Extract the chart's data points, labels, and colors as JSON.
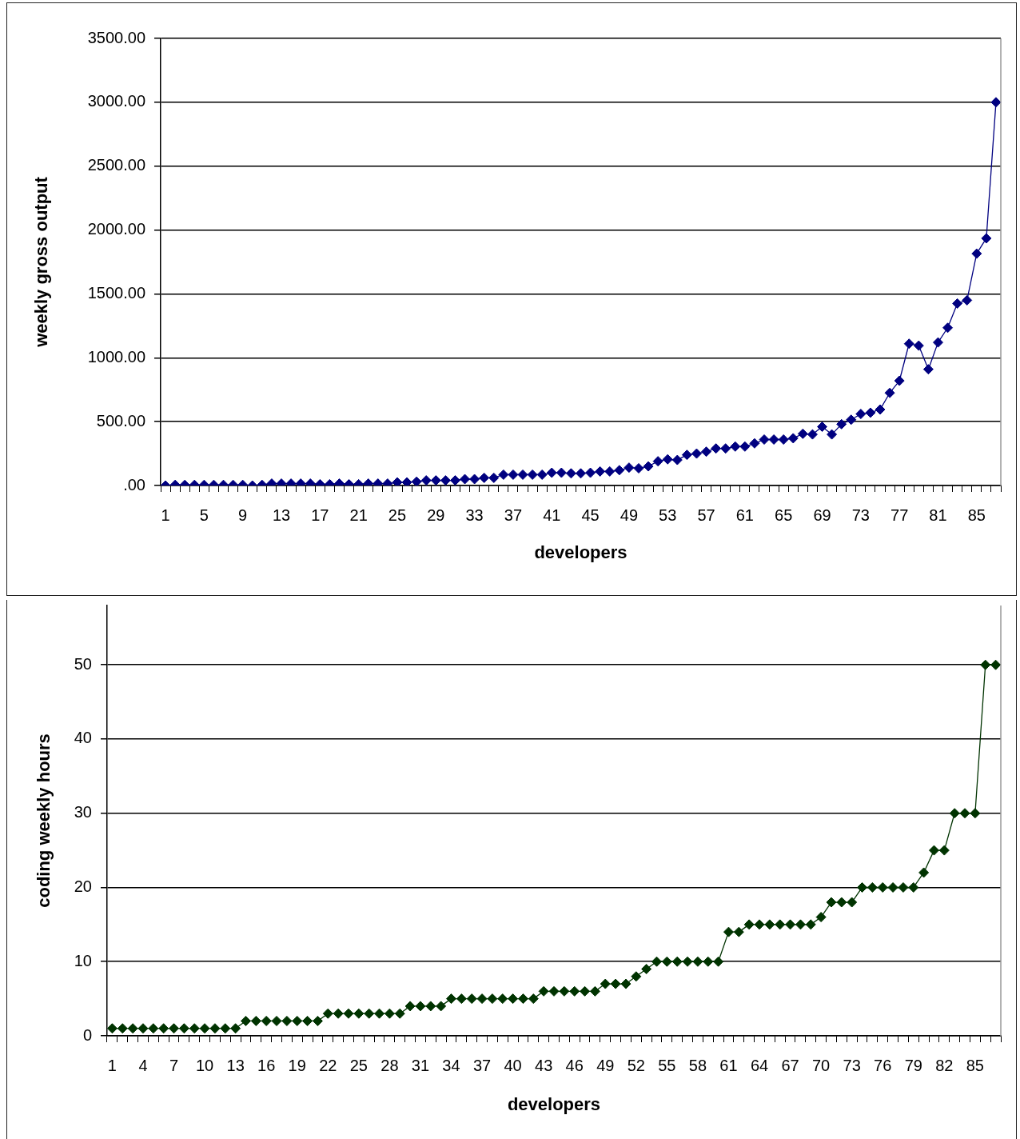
{
  "chart_data": [
    {
      "type": "line",
      "xlabel": "developers",
      "ylabel": "weekly gross output",
      "categories": [
        "1",
        null,
        null,
        null,
        "5",
        null,
        null,
        null,
        "9",
        null,
        null,
        null,
        "13",
        null,
        null,
        null,
        "17",
        null,
        null,
        null,
        "21",
        null,
        null,
        null,
        "25",
        null,
        null,
        null,
        "29",
        null,
        null,
        null,
        "33",
        null,
        null,
        null,
        "37",
        null,
        null,
        null,
        "41",
        null,
        null,
        null,
        "45",
        null,
        null,
        null,
        "49",
        null,
        null,
        null,
        "53",
        null,
        null,
        null,
        "57",
        null,
        null,
        null,
        "61",
        null,
        null,
        null,
        "65",
        null,
        null,
        null,
        "69",
        null,
        null,
        null,
        "73",
        null,
        null,
        null,
        "77",
        null,
        null,
        null,
        "81",
        null,
        null,
        null,
        "85",
        null,
        null
      ],
      "series": [
        {
          "color": "#000080",
          "values": [
            0,
            5,
            5,
            5,
            5,
            5,
            5,
            5,
            5,
            0,
            5,
            15,
            15,
            15,
            15,
            15,
            10,
            10,
            15,
            10,
            10,
            15,
            15,
            15,
            25,
            25,
            30,
            40,
            40,
            40,
            40,
            50,
            50,
            60,
            60,
            85,
            85,
            85,
            85,
            85,
            100,
            100,
            95,
            95,
            100,
            110,
            110,
            120,
            140,
            135,
            150,
            190,
            205,
            200,
            240,
            250,
            265,
            290,
            290,
            305,
            305,
            330,
            360,
            360,
            360,
            370,
            405,
            400,
            460,
            400,
            480,
            515,
            560,
            570,
            595,
            725,
            820,
            1110,
            1095,
            910,
            1120,
            1235,
            1425,
            1450,
            1815,
            1935,
            3000
          ]
        }
      ],
      "ylim": [
        0,
        3500
      ],
      "yticks": [
        {
          "value": 0,
          "label": ".00"
        },
        {
          "value": 500,
          "label": "500.00"
        },
        {
          "value": 1000,
          "label": "1000.00"
        },
        {
          "value": 1500,
          "label": "1500.00"
        },
        {
          "value": 2000,
          "label": "2000.00"
        },
        {
          "value": 2500,
          "label": "2500.00"
        },
        {
          "value": 3000,
          "label": "3000.00"
        },
        {
          "value": 3500,
          "label": "3500.00"
        }
      ],
      "grid": "y",
      "marker": "diamond",
      "line_style": "solid"
    },
    {
      "type": "line",
      "xlabel": "developers",
      "ylabel": "coding weekly hours",
      "categories": [
        "1",
        null,
        null,
        "4",
        null,
        null,
        "7",
        null,
        null,
        "10",
        null,
        null,
        "13",
        null,
        null,
        "16",
        null,
        null,
        "19",
        null,
        null,
        "22",
        null,
        null,
        "25",
        null,
        null,
        "28",
        null,
        null,
        "31",
        null,
        null,
        "34",
        null,
        null,
        "37",
        null,
        null,
        "40",
        null,
        null,
        "43",
        null,
        null,
        "46",
        null,
        null,
        "49",
        null,
        null,
        "52",
        null,
        null,
        "55",
        null,
        null,
        "58",
        null,
        null,
        "61",
        null,
        null,
        "64",
        null,
        null,
        "67",
        null,
        null,
        "70",
        null,
        null,
        "73",
        null,
        null,
        "76",
        null,
        null,
        "79",
        null,
        null,
        "82",
        null,
        null,
        "85",
        null,
        null
      ],
      "series": [
        {
          "color": "#003300",
          "values": [
            1,
            1,
            1,
            1,
            1,
            1,
            1,
            1,
            1,
            1,
            1,
            1,
            1,
            2,
            2,
            2,
            2,
            2,
            2,
            2,
            2,
            3,
            3,
            3,
            3,
            3,
            3,
            3,
            3,
            4,
            4,
            4,
            4,
            5,
            5,
            5,
            5,
            5,
            5,
            5,
            5,
            5,
            6,
            6,
            6,
            6,
            6,
            6,
            7,
            7,
            7,
            8,
            9,
            10,
            10,
            10,
            10,
            10,
            10,
            10,
            14,
            14,
            15,
            15,
            15,
            15,
            15,
            15,
            15,
            16,
            18,
            18,
            18,
            20,
            20,
            20,
            20,
            20,
            20,
            22,
            25,
            25,
            30,
            30,
            30,
            50,
            50
          ]
        }
      ],
      "ylim": [
        0,
        58
      ],
      "yticks": [
        0,
        10,
        20,
        30,
        40,
        50
      ],
      "grid": "y",
      "marker": "diamond",
      "line_style": "solid"
    }
  ]
}
